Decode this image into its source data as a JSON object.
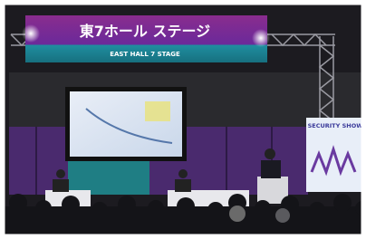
{
  "banner": {
    "title": "東7ホール ステージ",
    "subtitle": "EAST HALL 7 STAGE"
  },
  "sign": {
    "title": "SECURITY SHOW"
  }
}
